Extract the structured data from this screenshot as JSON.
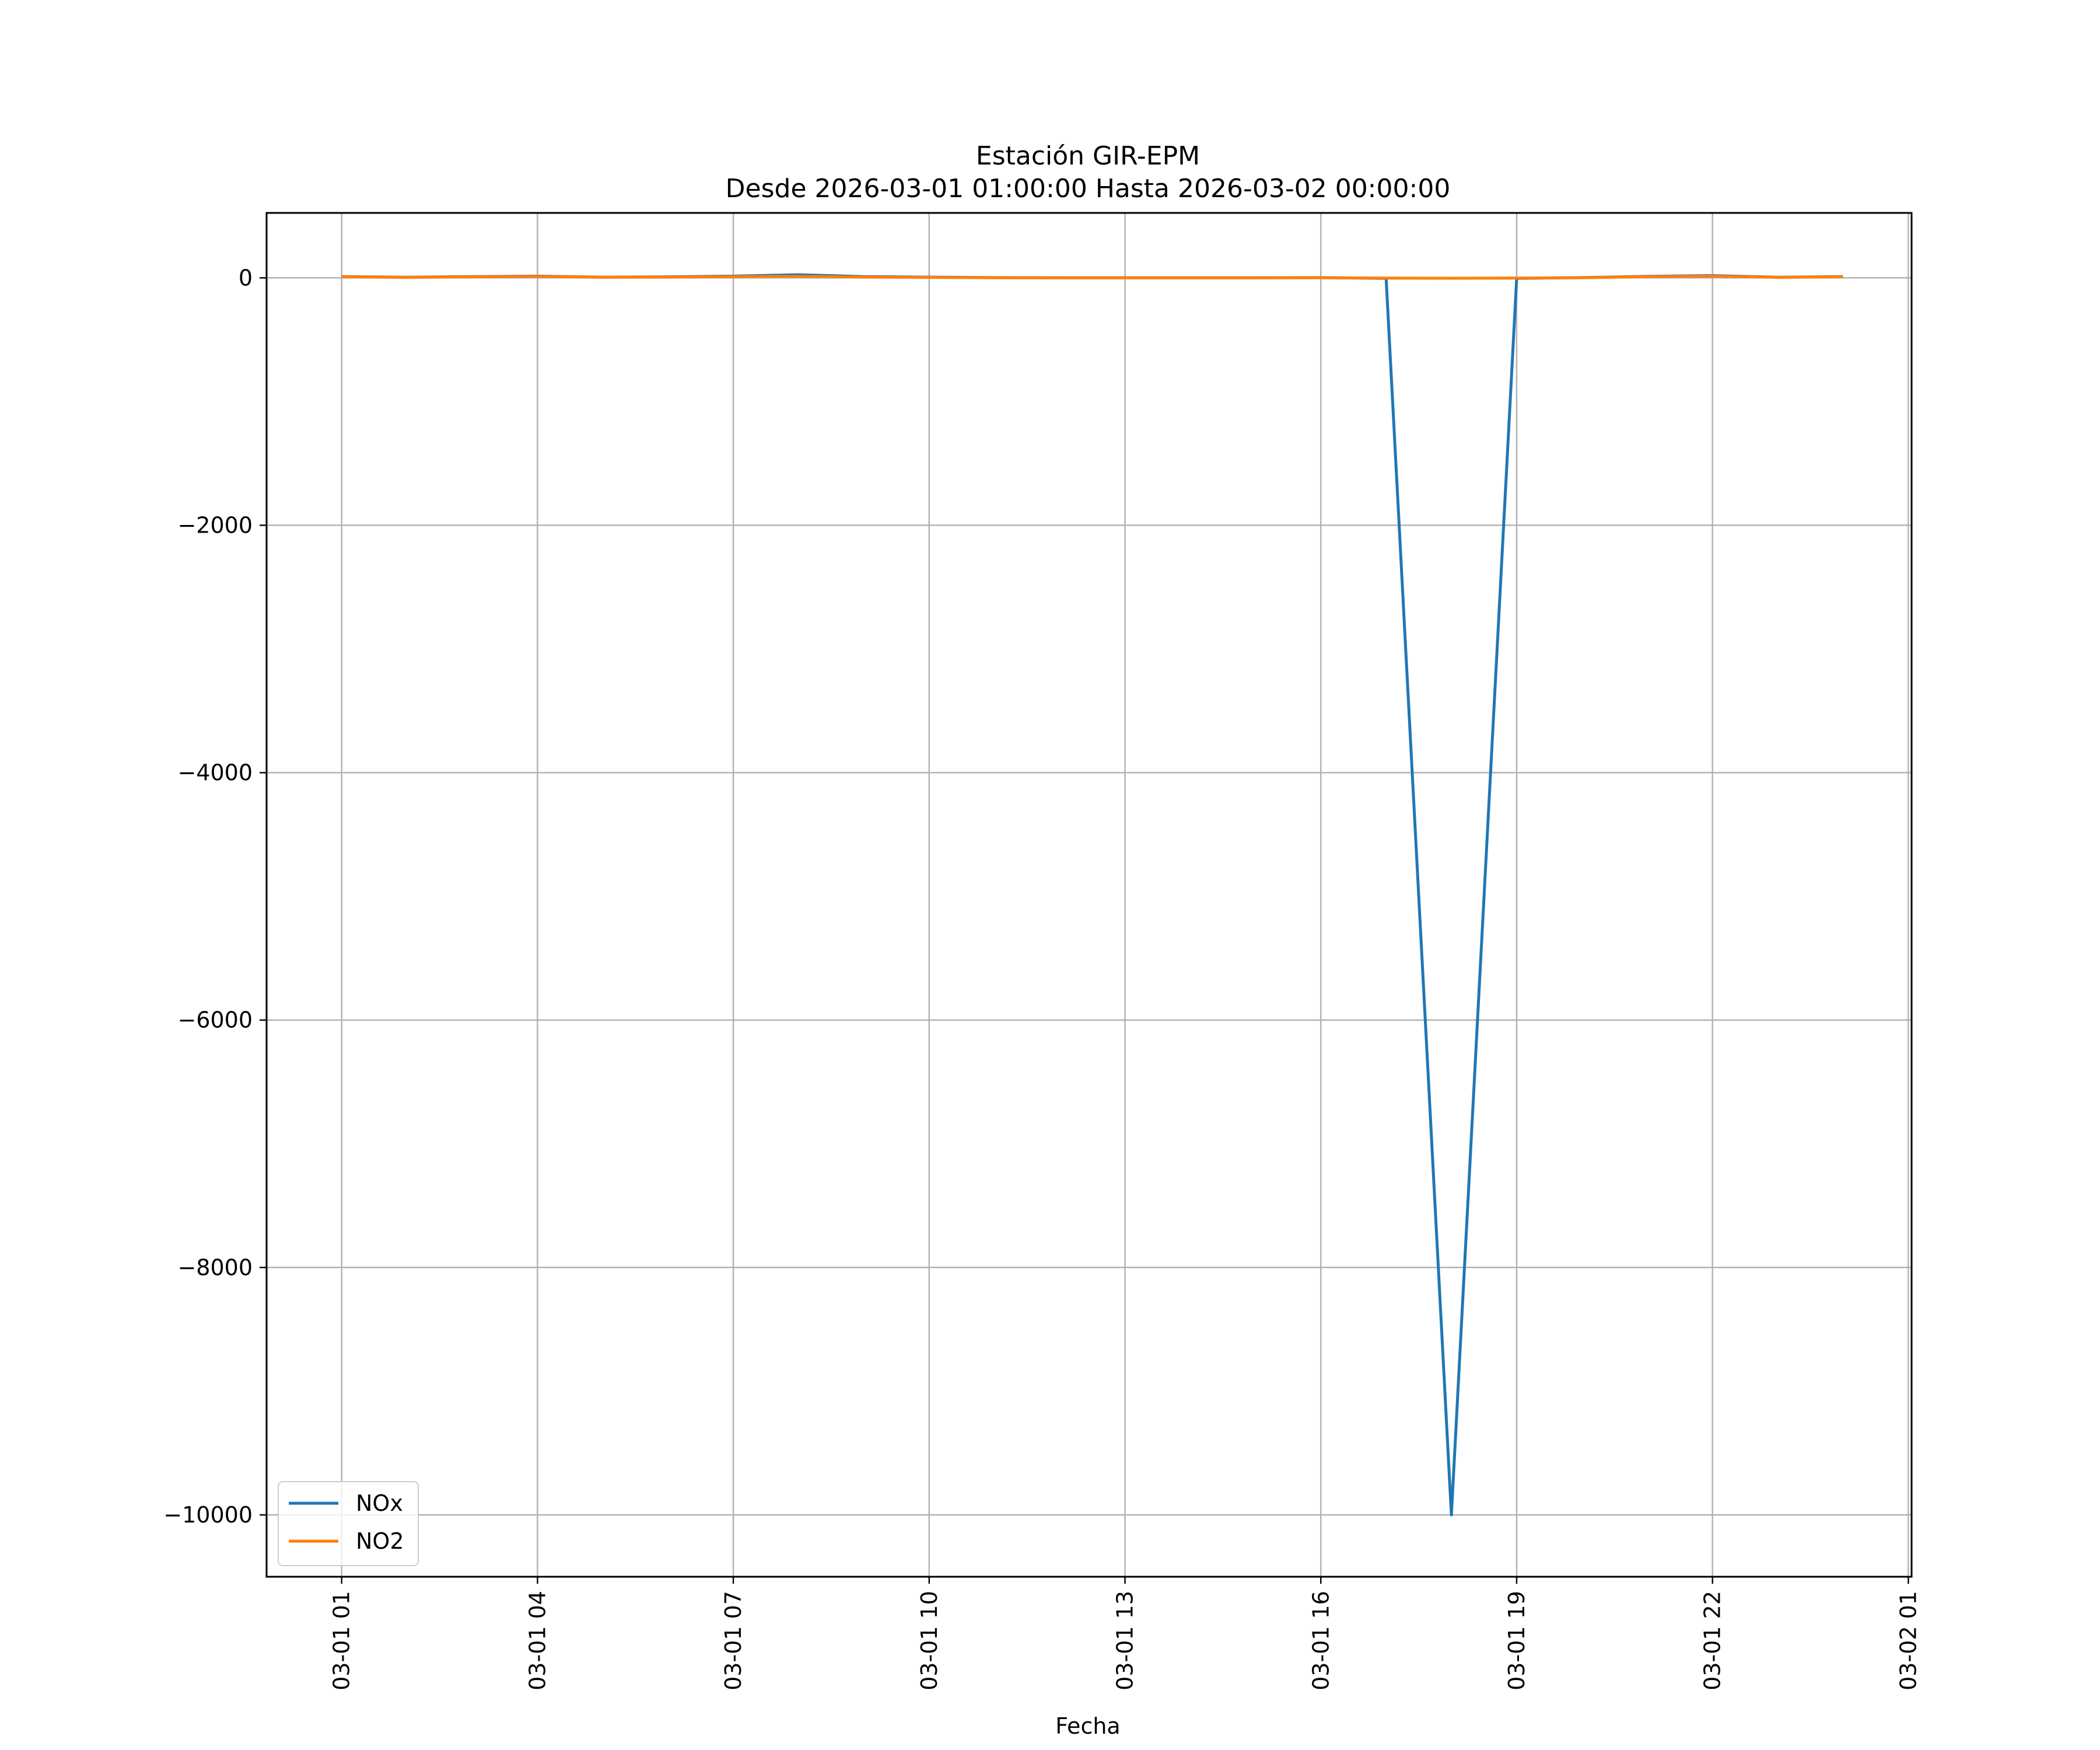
{
  "chart_data": {
    "type": "line",
    "title_line1": "Estación GIR-EPM",
    "title_line2": "Desde 2026-03-01 01:00:00 Hasta 2026-03-02 00:00:00",
    "xlabel": "Fecha",
    "ylabel": "",
    "x": [
      "2026-03-01 01:00",
      "2026-03-01 02:00",
      "2026-03-01 03:00",
      "2026-03-01 04:00",
      "2026-03-01 05:00",
      "2026-03-01 06:00",
      "2026-03-01 07:00",
      "2026-03-01 08:00",
      "2026-03-01 09:00",
      "2026-03-01 10:00",
      "2026-03-01 11:00",
      "2026-03-01 12:00",
      "2026-03-01 13:00",
      "2026-03-01 14:00",
      "2026-03-01 15:00",
      "2026-03-01 16:00",
      "2026-03-01 17:00",
      "2026-03-01 18:00",
      "2026-03-01 19:00",
      "2026-03-01 20:00",
      "2026-03-01 21:00",
      "2026-03-01 22:00",
      "2026-03-01 23:00",
      "2026-03-02 00:00"
    ],
    "series": [
      {
        "name": "NOx",
        "color": "#1f77b4",
        "values": [
          10,
          5,
          10,
          14,
          6,
          8,
          14,
          25,
          10,
          6,
          2,
          1,
          1,
          1,
          1,
          2,
          -4,
          -10000,
          -4,
          2,
          12,
          18,
          5,
          10
        ]
      },
      {
        "name": "NO2",
        "color": "#ff7f0e",
        "values": [
          8,
          4,
          8,
          12,
          5,
          6,
          10,
          12,
          6,
          4,
          1,
          0,
          0,
          0,
          0,
          1,
          -2,
          -3,
          -2,
          1,
          10,
          14,
          4,
          8
        ]
      }
    ],
    "xticks": [
      {
        "value": "2026-03-01 01:00",
        "label": "03-01 01"
      },
      {
        "value": "2026-03-01 04:00",
        "label": "03-01 04"
      },
      {
        "value": "2026-03-01 07:00",
        "label": "03-01 07"
      },
      {
        "value": "2026-03-01 10:00",
        "label": "03-01 10"
      },
      {
        "value": "2026-03-01 13:00",
        "label": "03-01 13"
      },
      {
        "value": "2026-03-01 16:00",
        "label": "03-01 16"
      },
      {
        "value": "2026-03-01 19:00",
        "label": "03-01 19"
      },
      {
        "value": "2026-03-01 22:00",
        "label": "03-01 22"
      },
      {
        "value": "2026-03-02 01:00",
        "label": "03-02 01"
      }
    ],
    "yticks": [
      {
        "value": 0,
        "label": "0"
      },
      {
        "value": -2000,
        "label": "−2000"
      },
      {
        "value": -4000,
        "label": "−4000"
      },
      {
        "value": -6000,
        "label": "−6000"
      },
      {
        "value": -8000,
        "label": "−8000"
      },
      {
        "value": -10000,
        "label": "−10000"
      }
    ],
    "xlim": [
      "2026-02-28 23:51",
      "2026-03-02 01:03"
    ],
    "ylim": [
      -10500,
      525
    ],
    "grid": true,
    "legend_position": "lower-left"
  }
}
